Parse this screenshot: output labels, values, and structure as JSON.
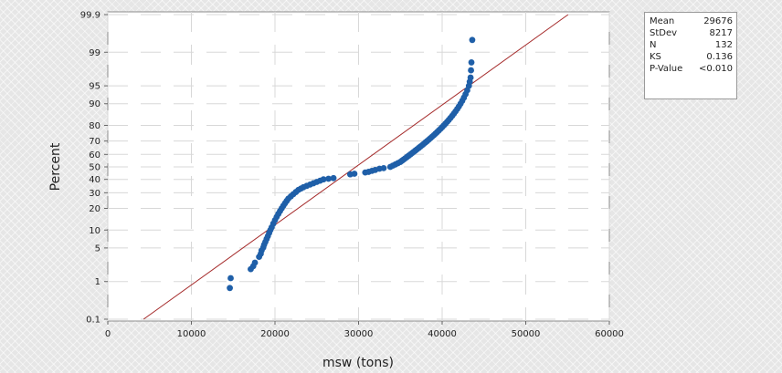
{
  "chart_data": {
    "type": "scatter",
    "subtype": "probability-plot-normal",
    "title": "",
    "xlabel": "msw (tons)",
    "ylabel": "Percent",
    "xlim": [
      0,
      60000
    ],
    "x_ticks": [
      0,
      10000,
      20000,
      30000,
      40000,
      50000,
      60000
    ],
    "y_scale": "normal-probability",
    "y_ticks": [
      "0.1",
      "1",
      "5",
      "10",
      "20",
      "30",
      "40",
      "50",
      "60",
      "70",
      "80",
      "90",
      "95",
      "99",
      "99.9"
    ],
    "ylim": [
      0.1,
      99.9
    ],
    "grid": true,
    "fit_line": {
      "mean": 29676,
      "stdev": 8217,
      "color": "#a52a2a"
    },
    "marker_color": "#1f5fa8",
    "points": [
      [
        14600,
        0.7
      ],
      [
        14700,
        1.2
      ],
      [
        17100,
        1.9
      ],
      [
        17400,
        2.2
      ],
      [
        17600,
        2.6
      ],
      [
        18100,
        3.4
      ],
      [
        18300,
        3.9
      ],
      [
        18400,
        4.5
      ],
      [
        18600,
        5.1
      ],
      [
        18700,
        5.7
      ],
      [
        18850,
        6.4
      ],
      [
        19000,
        7.2
      ],
      [
        19150,
        8.0
      ],
      [
        19300,
        9.0
      ],
      [
        19450,
        10.0
      ],
      [
        19600,
        11.0
      ],
      [
        19800,
        12.5
      ],
      [
        20000,
        14.0
      ],
      [
        20200,
        15.5
      ],
      [
        20400,
        17.0
      ],
      [
        20600,
        18.5
      ],
      [
        20800,
        20.0
      ],
      [
        21000,
        21.5
      ],
      [
        21200,
        23.0
      ],
      [
        21400,
        24.5
      ],
      [
        21600,
        26.0
      ],
      [
        21900,
        27.5
      ],
      [
        22200,
        29.0
      ],
      [
        22500,
        30.5
      ],
      [
        22800,
        32.0
      ],
      [
        23100,
        33.0
      ],
      [
        23400,
        34.0
      ],
      [
        23800,
        35.0
      ],
      [
        24200,
        36.0
      ],
      [
        24600,
        37.0
      ],
      [
        25000,
        38.0
      ],
      [
        25400,
        39.0
      ],
      [
        25800,
        40.0
      ],
      [
        26400,
        40.5
      ],
      [
        27000,
        41.0
      ],
      [
        29000,
        44.0
      ],
      [
        29500,
        44.5
      ],
      [
        30800,
        45.5
      ],
      [
        31200,
        46.0
      ],
      [
        31600,
        46.8
      ],
      [
        32000,
        47.5
      ],
      [
        32500,
        48.5
      ],
      [
        33000,
        49.0
      ],
      [
        33800,
        50.0
      ],
      [
        34100,
        51.0
      ],
      [
        34400,
        52.0
      ],
      [
        34700,
        53.0
      ],
      [
        35000,
        54.0
      ],
      [
        35200,
        55.0
      ],
      [
        35400,
        56.0
      ],
      [
        35600,
        57.0
      ],
      [
        35800,
        58.0
      ],
      [
        36000,
        59.0
      ],
      [
        36200,
        60.0
      ],
      [
        36400,
        61.0
      ],
      [
        36600,
        62.0
      ],
      [
        36800,
        63.0
      ],
      [
        37000,
        64.0
      ],
      [
        37200,
        65.0
      ],
      [
        37400,
        66.0
      ],
      [
        37600,
        67.0
      ],
      [
        37800,
        68.0
      ],
      [
        38000,
        69.0
      ],
      [
        38200,
        70.0
      ],
      [
        38400,
        71.0
      ],
      [
        38600,
        72.0
      ],
      [
        38800,
        73.0
      ],
      [
        39000,
        74.0
      ],
      [
        39200,
        75.0
      ],
      [
        39400,
        76.0
      ],
      [
        39600,
        77.0
      ],
      [
        39800,
        78.0
      ],
      [
        40000,
        79.0
      ],
      [
        40200,
        80.0
      ],
      [
        40400,
        81.0
      ],
      [
        40600,
        82.0
      ],
      [
        40800,
        83.0
      ],
      [
        41000,
        84.0
      ],
      [
        41200,
        85.0
      ],
      [
        41400,
        86.0
      ],
      [
        41600,
        87.0
      ],
      [
        41800,
        88.0
      ],
      [
        42000,
        89.0
      ],
      [
        42200,
        90.0
      ],
      [
        42400,
        91.0
      ],
      [
        42600,
        92.0
      ],
      [
        42800,
        93.0
      ],
      [
        43000,
        94.0
      ],
      [
        43200,
        95.0
      ],
      [
        43300,
        95.8
      ],
      [
        43400,
        96.5
      ],
      [
        43450,
        97.5
      ],
      [
        43500,
        98.3
      ],
      [
        43600,
        99.5
      ]
    ]
  },
  "stats_box": [
    {
      "label": "Mean",
      "value": "29676"
    },
    {
      "label": "StDev",
      "value": "8217"
    },
    {
      "label": "N",
      "value": "132"
    },
    {
      "label": "KS",
      "value": "0.136"
    },
    {
      "label": "P-Value",
      "value": "<0.010"
    }
  ]
}
